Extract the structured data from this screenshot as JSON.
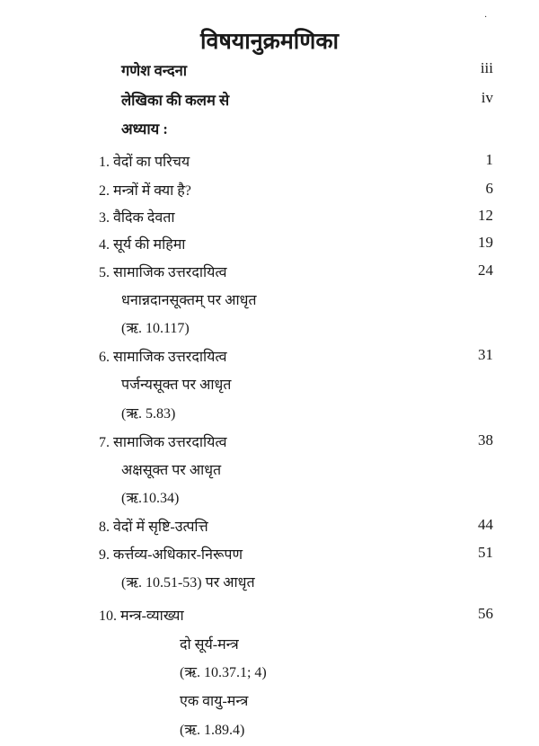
{
  "title": "विषयानुक्रमणिका",
  "entries": [
    {
      "text": "गणेश वन्दना",
      "page": "iii"
    },
    {
      "text": "लेखिका की कलम से",
      "page": "iv"
    },
    {
      "text": "अध्याय :",
      "page": ""
    },
    {
      "text": "1. वेदों का परिचय",
      "page": "1"
    },
    {
      "text": "2. मन्त्रों में क्या है?",
      "page": "6"
    },
    {
      "text": "3. वैदिक देवता",
      "page": "12"
    },
    {
      "text": "4. सूर्य की महिमा",
      "page": "19"
    },
    {
      "text": "5. सामाजिक उत्तरदायित्व",
      "page": "24"
    },
    {
      "text": "धनान्नदानसूक्तम् पर आधृत",
      "page": ""
    },
    {
      "text": "(ऋ. 10.117)",
      "page": ""
    },
    {
      "text": "6. सामाजिक उत्तरदायित्व",
      "page": "31"
    },
    {
      "text": "पर्जन्यसूक्त पर आधृत",
      "page": ""
    },
    {
      "text": "(ऋ. 5.83)",
      "page": ""
    },
    {
      "text": "7. सामाजिक उत्तरदायित्व",
      "page": "38"
    },
    {
      "text": "अक्षसूक्त पर आधृत",
      "page": ""
    },
    {
      "text": "(ऋ.10.34)",
      "page": ""
    },
    {
      "text": "8. वेदों में सृष्टि-उत्पत्ति",
      "page": "44"
    },
    {
      "text": "9. कर्त्तव्य-अधिकार-निरूपण",
      "page": "51"
    },
    {
      "text": "(ऋ. 10.51-53) पर आधृत",
      "page": ""
    },
    {
      "text": "10. मन्त्र-व्याख्या",
      "page": "56"
    },
    {
      "text": "दो सूर्य-मन्त्र",
      "page": ""
    },
    {
      "text": "(ऋ. 10.37.1; 4)",
      "page": ""
    },
    {
      "text": "एक वायु-मन्त्र",
      "page": ""
    },
    {
      "text": "(ऋ. 1.89.4)",
      "page": ""
    }
  ]
}
